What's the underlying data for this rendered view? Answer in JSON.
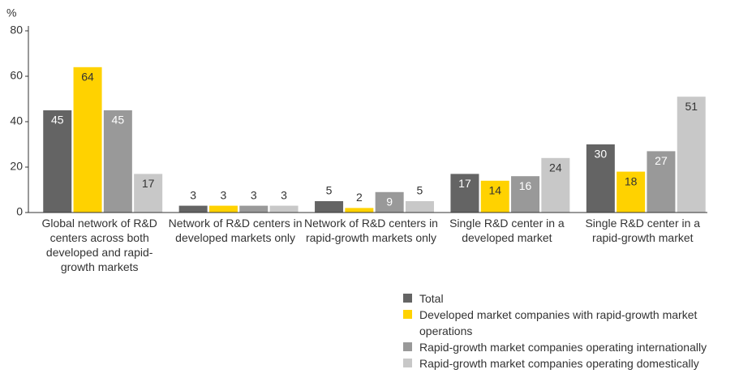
{
  "chart_data": {
    "type": "bar",
    "y_label": "%",
    "categories": [
      "Global network of R&D centers across both developed and rapid-growth markets",
      "Network of R&D centers in developed markets only",
      "Network of R&D centers in rapid-growth markets only",
      "Single R&D center in a developed market",
      "Single R&D center in a rapid-growth market"
    ],
    "series": [
      {
        "name": "Total",
        "color": "#646464",
        "values": [
          45,
          3,
          5,
          17,
          30
        ]
      },
      {
        "name": "Developed market companies with rapid-growth market operations",
        "color": "#ffd200",
        "values": [
          64,
          3,
          2,
          14,
          18
        ]
      },
      {
        "name": "Rapid-growth market companies operating internationally",
        "color": "#999999",
        "values": [
          45,
          3,
          9,
          16,
          27
        ]
      },
      {
        "name": "Rapid-growth market companies operating domestically",
        "color": "#c8c8c8",
        "values": [
          17,
          3,
          5,
          24,
          51
        ]
      }
    ],
    "ylim": [
      0,
      80
    ],
    "yticks": [
      0,
      20,
      40,
      60,
      80
    ],
    "grid": false,
    "legend": "bottom-right"
  }
}
